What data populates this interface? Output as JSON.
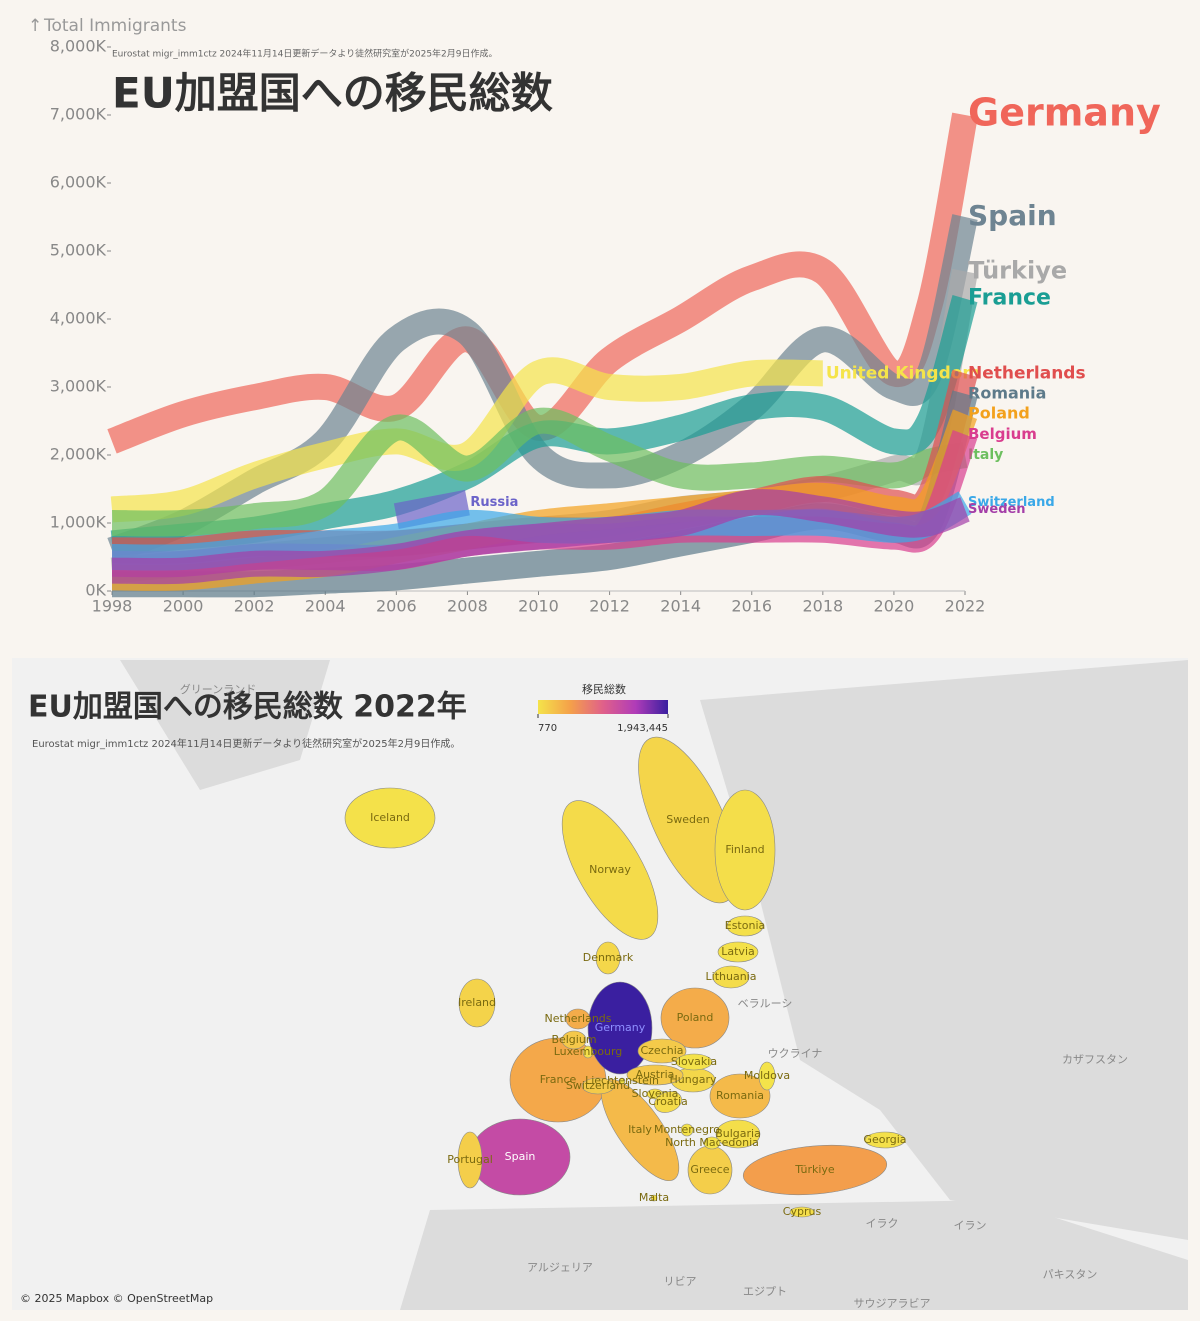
{
  "chart_data": [
    {
      "type": "line",
      "title": "EU加盟国への移民総数",
      "subtitle": "Eurostat migr_imm1ctz 2024年11月14日更新データより徒然研究室が2025年2月9日作成。",
      "ylabel": "Total Immigrants",
      "x": [
        1998,
        2000,
        2002,
        2004,
        2006,
        2008,
        2010,
        2012,
        2014,
        2016,
        2018,
        2020,
        2021,
        2022
      ],
      "xlim": [
        1998,
        2022
      ],
      "xticks": [
        1998,
        2000,
        2002,
        2004,
        2006,
        2008,
        2010,
        2012,
        2014,
        2016,
        2018,
        2020,
        2022
      ],
      "ylim": [
        0,
        8000
      ],
      "yticks": [
        {
          "value": 0,
          "label": "0K"
        },
        {
          "value": 1000,
          "label": "1,000K"
        },
        {
          "value": 2000,
          "label": "2,000K"
        },
        {
          "value": 3000,
          "label": "3,000K"
        },
        {
          "value": 4000,
          "label": "4,000K"
        },
        {
          "value": 5000,
          "label": "5,000K"
        },
        {
          "value": 6000,
          "label": "6,000K"
        },
        {
          "value": 7000,
          "label": "7,000K"
        },
        {
          "value": 8000,
          "label": "8,000K"
        }
      ],
      "series": [
        {
          "name": "Germany",
          "color": "#f0665a",
          "values": [
            2200,
            2600,
            2850,
            3000,
            2700,
            3700,
            2400,
            3400,
            4000,
            4600,
            4700,
            3200,
            4200,
            7000
          ]
        },
        {
          "name": "Spain",
          "color": "#6e8492",
          "values": [
            600,
            1000,
            1600,
            2200,
            3700,
            3800,
            2000,
            1700,
            2000,
            2700,
            3700,
            3000,
            3200,
            5500
          ]
        },
        {
          "name": "Türkiye",
          "color": "#a9a9a9",
          "values": [
            300,
            400,
            500,
            600,
            700,
            800,
            900,
            1000,
            1200,
            1300,
            1500,
            1800,
            2000,
            4700
          ]
        },
        {
          "name": "France",
          "color": "#1a9e94",
          "values": [
            700,
            800,
            900,
            1100,
            1300,
            1700,
            2300,
            2200,
            2400,
            2700,
            2700,
            2200,
            2500,
            4300
          ]
        },
        {
          "name": "United Kingdom",
          "color": "#f5e44a",
          "values": [
            1200,
            1300,
            1700,
            2000,
            2200,
            2000,
            3200,
            3000,
            3000,
            3200,
            3200,
            null,
            null,
            null
          ]
        },
        {
          "name": "Italy",
          "color": "#6dbf5f",
          "values": [
            1000,
            1000,
            1100,
            1300,
            2400,
            1800,
            2500,
            2100,
            1700,
            1700,
            1800,
            1700,
            1900,
            2000
          ]
        },
        {
          "name": "Netherlands",
          "color": "#e04e4e",
          "values": [
            600,
            600,
            700,
            700,
            700,
            800,
            900,
            900,
            1100,
            1300,
            1500,
            1300,
            1400,
            3200
          ]
        },
        {
          "name": "Romania",
          "color": "#5d7a8a",
          "values": [
            100,
            100,
            100,
            150,
            200,
            300,
            400,
            500,
            700,
            900,
            1100,
            900,
            1000,
            2900
          ]
        },
        {
          "name": "Poland",
          "color": "#f3a11c",
          "values": [
            200,
            200,
            300,
            400,
            600,
            800,
            1000,
            1100,
            1200,
            1300,
            1400,
            1200,
            1300,
            2600
          ]
        },
        {
          "name": "Belgium",
          "color": "#d93d8e",
          "values": [
            400,
            400,
            500,
            500,
            500,
            700,
            800,
            800,
            900,
            900,
            900,
            800,
            900,
            2300
          ]
        },
        {
          "name": "Russia",
          "color": "#6b63c9",
          "values": [
            null,
            null,
            null,
            null,
            1100,
            1300,
            null,
            null,
            null,
            null,
            null,
            null,
            null,
            null
          ]
        },
        {
          "name": "Switzerland",
          "color": "#3aa8e8",
          "values": [
            500,
            500,
            600,
            700,
            800,
            1000,
            900,
            900,
            1000,
            1000,
            1000,
            900,
            1000,
            1300
          ]
        },
        {
          "name": "Sweden",
          "color": "#a43ea8",
          "values": [
            300,
            300,
            400,
            400,
            500,
            700,
            800,
            900,
            1000,
            1300,
            1200,
            1000,
            1000,
            1200
          ]
        }
      ]
    },
    {
      "type": "choropleth",
      "title": "EU加盟国への移民総数 2022年",
      "subtitle": "Eurostat migr_imm1ctz 2024年11月14日更新データより徒然研究室が2025年2月9日作成。",
      "colorbar_title": "移民総数",
      "colorscale": [
        "#f4e34a",
        "#f4a04a",
        "#e0608a",
        "#b03cb8",
        "#3a1fa0"
      ],
      "clim": [
        770,
        1943445
      ],
      "cticks": [
        770,
        {
          "value": 1943445,
          "label": "1,943,445"
        }
      ],
      "regions": [
        {
          "name": "Norway",
          "value": 60000
        },
        {
          "name": "Sweden",
          "value": 100000
        },
        {
          "name": "Finland",
          "value": 40000
        },
        {
          "name": "Iceland",
          "value": 12000
        },
        {
          "name": "Ireland",
          "value": 120000
        },
        {
          "name": "Spain",
          "value": 1259000
        },
        {
          "name": "Portugal",
          "value": 150000
        },
        {
          "name": "France",
          "value": 430000
        },
        {
          "name": "Italy",
          "value": 300000
        },
        {
          "name": "Germany",
          "value": 1943445
        },
        {
          "name": "Poland",
          "value": 400000
        },
        {
          "name": "Türkiye",
          "value": 500000
        },
        {
          "name": "Romania",
          "value": 300000
        },
        {
          "name": "Greece",
          "value": 150000
        },
        {
          "name": "Bulgaria",
          "value": 40000
        },
        {
          "name": "Hungary",
          "value": 90000
        },
        {
          "name": "Austria",
          "value": 200000
        },
        {
          "name": "Czechia",
          "value": 180000
        },
        {
          "name": "Slovakia",
          "value": 10000
        },
        {
          "name": "Moldova",
          "value": 770
        },
        {
          "name": "Estonia",
          "value": 20000
        },
        {
          "name": "Latvia",
          "value": 15000
        },
        {
          "name": "Lithuania",
          "value": 50000
        },
        {
          "name": "Denmark",
          "value": 90000
        },
        {
          "name": "Netherlands",
          "value": 400000
        },
        {
          "name": "Belgium",
          "value": 200000
        },
        {
          "name": "Luxembourg",
          "value": 30000
        },
        {
          "name": "Switzerland",
          "value": 180000
        },
        {
          "name": "Liechtenstein",
          "value": 1000
        },
        {
          "name": "Slovenia",
          "value": 30000
        },
        {
          "name": "Croatia",
          "value": 60000
        },
        {
          "name": "Montenegro",
          "value": 5000
        },
        {
          "name": "North Macedonia",
          "value": 10000
        },
        {
          "name": "Georgia",
          "value": 20000
        },
        {
          "name": "Cyprus",
          "value": 40000
        },
        {
          "name": "Malta",
          "value": 30000
        }
      ],
      "map_labels": [
        "グリーンランド",
        "ベラルーシ",
        "ウクライナ",
        "カザフスタン",
        "イラク",
        "イラン",
        "アルジェリア",
        "リビア",
        "エジプト",
        "サウジアラビア",
        "パキスタン"
      ],
      "attribution": "© 2025 Mapbox © OpenStreetMap"
    }
  ]
}
